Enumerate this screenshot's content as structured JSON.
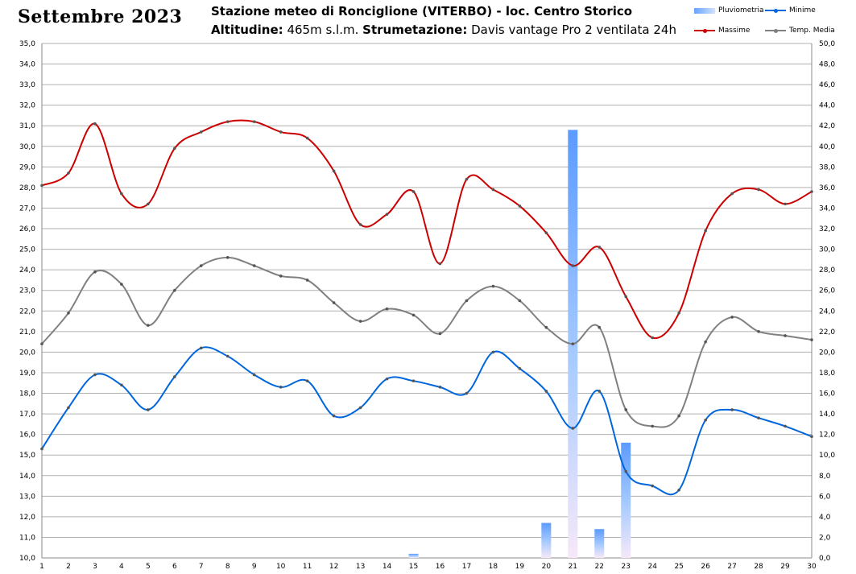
{
  "header": {
    "month_title": "Settembre 2023",
    "line1": "Stazione meteo di Ronciglione (VITERBO) - loc. Centro Storico",
    "alt_label": "Altitudine:",
    "alt_value": "465m s.l.m.",
    "instr_label": "Strumetazione:",
    "instr_value": "Davis vantage Pro 2  ventilata 24h"
  },
  "legend": {
    "rain": "Pluviometria",
    "min": "Minime",
    "max": "Massime",
    "mean": "Temp. Media"
  },
  "colors": {
    "max": "#cc0000",
    "min": "#0066dd",
    "mean": "#808080",
    "rain_top": "#5b9bff",
    "rain_mid": "#a9ccff",
    "rain_bottom": "#f6e8f8",
    "grid": "#b0b0b0"
  },
  "chart_data": {
    "type": "line",
    "x": [
      1,
      2,
      3,
      4,
      5,
      6,
      7,
      8,
      9,
      10,
      11,
      12,
      13,
      14,
      15,
      16,
      17,
      18,
      19,
      20,
      21,
      22,
      23,
      24,
      25,
      26,
      27,
      28,
      29,
      30
    ],
    "ylim_left": [
      10,
      35
    ],
    "ylim_right": [
      0,
      50
    ],
    "grid": true,
    "legend_position": "top-right",
    "series": [
      {
        "name": "Massime",
        "axis": "left",
        "values": [
          28.1,
          28.7,
          31.1,
          27.7,
          27.2,
          29.9,
          30.7,
          31.2,
          31.2,
          30.7,
          30.4,
          28.8,
          26.2,
          26.7,
          27.8,
          24.3,
          28.4,
          27.9,
          27.1,
          25.8,
          24.2,
          25.1,
          22.7,
          20.7,
          21.9,
          25.9,
          27.7,
          27.9,
          27.2,
          27.8
        ]
      },
      {
        "name": "Temp. Media",
        "axis": "left",
        "values": [
          20.4,
          21.9,
          23.9,
          23.3,
          21.3,
          23.0,
          24.2,
          24.6,
          24.2,
          23.7,
          23.5,
          22.4,
          21.5,
          22.1,
          21.8,
          20.9,
          22.5,
          23.2,
          22.5,
          21.2,
          20.4,
          21.2,
          17.2,
          16.4,
          16.9,
          20.5,
          21.7,
          21.0,
          20.8,
          20.6
        ]
      },
      {
        "name": "Minime",
        "axis": "left",
        "values": [
          15.3,
          17.3,
          18.9,
          18.4,
          17.2,
          18.8,
          20.2,
          19.8,
          18.9,
          18.3,
          18.6,
          16.9,
          17.3,
          18.7,
          18.6,
          18.3,
          18.0,
          20.0,
          19.2,
          18.1,
          16.3,
          18.1,
          14.2,
          13.5,
          13.3,
          16.7,
          17.2,
          16.8,
          16.4,
          15.9
        ]
      },
      {
        "name": "Pluviometria",
        "axis": "right",
        "type": "bar",
        "values": [
          0,
          0,
          0,
          0,
          0,
          0,
          0,
          0,
          0,
          0,
          0,
          0,
          0,
          0,
          0.4,
          0,
          0,
          0,
          0,
          3.4,
          41.6,
          2.8,
          11.2,
          0,
          0,
          0,
          0,
          0,
          0,
          0
        ]
      }
    ]
  }
}
